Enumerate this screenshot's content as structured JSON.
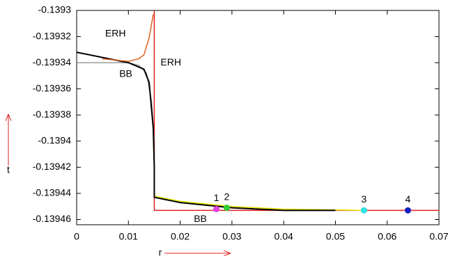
{
  "chart_data": {
    "type": "line",
    "x_label": "r",
    "y_label": "t",
    "xlim": [
      0,
      0.07
    ],
    "xticks": [
      0,
      0.01,
      0.02,
      0.03,
      0.04,
      0.05,
      0.06,
      0.07
    ],
    "ylim": [
      -0.139464,
      -0.1393
    ],
    "yticks": [
      -0.1393,
      -0.13932,
      -0.13934,
      -0.13936,
      -0.13938,
      -0.1394,
      -0.13942,
      -0.13944,
      -0.13946
    ],
    "series": [
      {
        "color": "#e02020",
        "x": [
          0.015,
          0.015,
          0.07
        ],
        "y": [
          -0.1393,
          -0.139453,
          -0.139453
        ]
      },
      {
        "color": "#999999",
        "x": [
          0,
          0.01,
          0.012,
          0.0135,
          0.0145,
          0.015
        ],
        "y": [
          -0.13934,
          -0.13934,
          -0.139342,
          -0.139348,
          -0.13937,
          -0.1394
        ]
      },
      {
        "color": "#e8e800",
        "x": [
          0.015,
          0.02,
          0.03,
          0.04,
          0.055
        ],
        "y": [
          -0.139442,
          -0.139446,
          -0.13945,
          -0.139452,
          -0.139453
        ]
      },
      {
        "color": "#000000",
        "x": [
          0,
          0.005,
          0.01,
          0.013,
          0.014,
          0.0148,
          0.015,
          0.015,
          0.02,
          0.03,
          0.04,
          0.05
        ],
        "y": [
          -0.139332,
          -0.139336,
          -0.13934,
          -0.139345,
          -0.139355,
          -0.13939,
          -0.13942,
          -0.139443,
          -0.139447,
          -0.139451,
          -0.139453,
          -0.139453
        ]
      },
      {
        "color": "#e06020",
        "x": [
          0.005,
          0.01,
          0.012,
          0.013,
          0.014,
          0.0145,
          0.0148
        ],
        "y": [
          -0.139337,
          -0.139339,
          -0.139337,
          -0.139334,
          -0.139321,
          -0.13931,
          -0.139303
        ]
      }
    ],
    "points": [
      {
        "label": "1",
        "color": "#e040e0",
        "x": 0.027,
        "y": -0.139452
      },
      {
        "label": "2",
        "color": "#30d030",
        "x": 0.029,
        "y": -0.139451
      },
      {
        "label": "3",
        "color": "#30e0e8",
        "x": 0.0555,
        "y": -0.139453
      },
      {
        "label": "4",
        "color": "#1020c0",
        "x": 0.064,
        "y": -0.139453
      }
    ],
    "annotations": [
      {
        "text": "ERH",
        "x": 0.0075,
        "y": -0.139318
      },
      {
        "text": "ERH",
        "x": 0.0182,
        "y": -0.13934
      },
      {
        "text": "BB",
        "x": 0.0095,
        "y": -0.139349
      },
      {
        "text": "BB",
        "x": 0.0239,
        "y": -0.13946
      }
    ]
  }
}
